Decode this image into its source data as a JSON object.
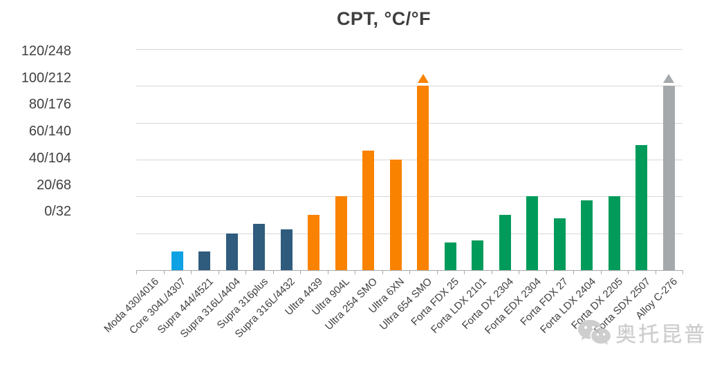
{
  "watermark": {
    "icon": "wechat-icon",
    "brand_text": "奥托昆普"
  },
  "chart_data": {
    "type": "bar",
    "title": "CPT, °C/°F",
    "xlabel": "",
    "ylabel": "CPT, °C/°F",
    "ylim": [
      0,
      120
    ],
    "grid": true,
    "legend": "none",
    "y_tick_labels": [
      "120/248",
      "100/212",
      "80/176",
      "60/140",
      "40/104",
      "20/68",
      "0/32"
    ],
    "categories": [
      "Moda 430/4016",
      "Core 304L/4307",
      "Supra 444/4521",
      "Supra 316L/4404",
      "Supra 316plus",
      "Supra 316L/4432",
      "Ultra 4439",
      "Ultra 904L",
      "Ultra 254 SMO",
      "Ultra 6XN",
      "Ultra 654 SMO",
      "Forta FDX 25",
      "Forta LDX 2101",
      "Forta DX 2304",
      "Forta EDX 2304",
      "Forta FDX 27",
      "Forta LDX 2404",
      "Forta DX 2205",
      "Forta SDX 2507",
      "Alloy C-276"
    ],
    "values_celsius": [
      0,
      10,
      10,
      20,
      25,
      22,
      30,
      40,
      65,
      60,
      100,
      15,
      16,
      30,
      40,
      28,
      38,
      40,
      68,
      100
    ],
    "exceeds_scale_arrow": [
      false,
      false,
      false,
      false,
      false,
      false,
      false,
      false,
      false,
      false,
      true,
      false,
      false,
      false,
      false,
      false,
      false,
      false,
      false,
      true
    ],
    "palette": {
      "light_blue": "#0ea1e4",
      "steel_blue": "#2f5b7d",
      "orange": "#f98200",
      "green": "#009b5b",
      "gray": "#a5a9ac",
      "gridline": "#d6d6d6",
      "axis": "#a9a9a9",
      "text": "#404040"
    },
    "bar_color_keys": [
      "light_blue",
      "light_blue",
      "steel_blue",
      "steel_blue",
      "steel_blue",
      "steel_blue",
      "orange",
      "orange",
      "orange",
      "orange",
      "orange",
      "green",
      "green",
      "green",
      "green",
      "green",
      "green",
      "green",
      "green",
      "gray"
    ]
  }
}
